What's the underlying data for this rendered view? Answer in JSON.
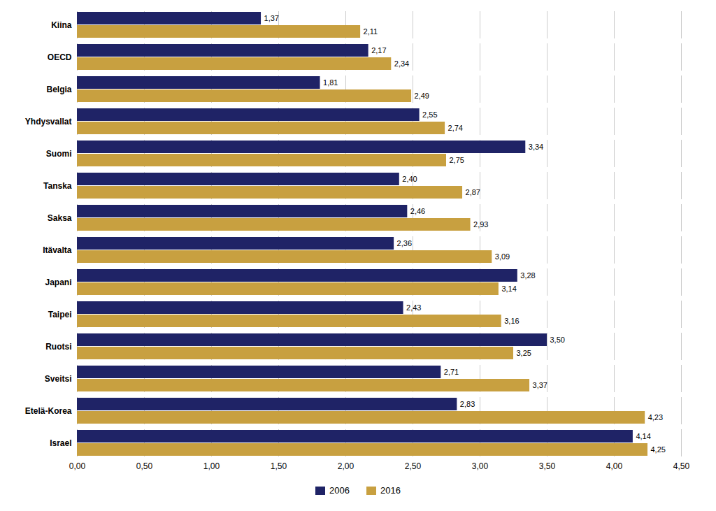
{
  "chart_data": {
    "type": "bar",
    "orientation": "horizontal",
    "categories": [
      "Israel",
      "Etelä-Korea",
      "Sveitsi",
      "Ruotsi",
      "Taipei",
      "Japani",
      "Itävalta",
      "Saksa",
      "Tanska",
      "Suomi",
      "Yhdysvallat",
      "Belgia",
      "OECD",
      "Kiina"
    ],
    "series": [
      {
        "name": "2006",
        "color": "#1f2366",
        "values": [
          4.14,
          2.83,
          2.71,
          3.5,
          2.43,
          3.28,
          2.36,
          2.46,
          2.4,
          3.34,
          2.55,
          1.81,
          2.17,
          1.37
        ],
        "value_labels": [
          "4,14",
          "2,83",
          "2,71",
          "3,50",
          "2,43",
          "3,28",
          "2,36",
          "2,46",
          "2,40",
          "3,34",
          "2,55",
          "1,81",
          "2,17",
          "1,37"
        ]
      },
      {
        "name": "2016",
        "color": "#c8a040",
        "values": [
          4.25,
          4.23,
          3.37,
          3.25,
          3.16,
          3.14,
          3.09,
          2.93,
          2.87,
          2.75,
          2.74,
          2.49,
          2.34,
          2.11
        ],
        "value_labels": [
          "4,25",
          "4,23",
          "3,37",
          "3,25",
          "3,16",
          "3,14",
          "3,09",
          "2,93",
          "2,87",
          "2,75",
          "2,74",
          "2,49",
          "2,34",
          "2,11"
        ]
      }
    ],
    "xlim": [
      0,
      4.5
    ],
    "xticks": [
      {
        "value": 0.0,
        "label": "0,00"
      },
      {
        "value": 0.5,
        "label": "0,50"
      },
      {
        "value": 1.0,
        "label": "1,00"
      },
      {
        "value": 1.5,
        "label": "1,50"
      },
      {
        "value": 2.0,
        "label": "2,00"
      },
      {
        "value": 2.5,
        "label": "2,50"
      },
      {
        "value": 3.0,
        "label": "3,00"
      },
      {
        "value": 3.5,
        "label": "3,50"
      },
      {
        "value": 4.0,
        "label": "4,00"
      },
      {
        "value": 4.5,
        "label": "4,50"
      }
    ],
    "grid": true,
    "data_labels": true,
    "legend": "bottom"
  }
}
